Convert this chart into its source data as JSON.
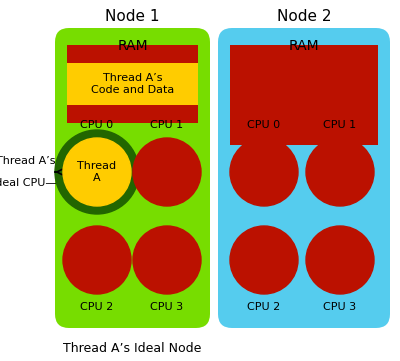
{
  "node1_label": "Node 1",
  "node2_label": "Node 2",
  "node1_color": "#77dd00",
  "node2_color": "#55ccee",
  "ram_color": "#bb1100",
  "cpu_color": "#bb1100",
  "cpu0_fill": "#ffcc00",
  "cpu0_ring": "#226600",
  "yellow_color": "#ffcc00",
  "ram_label": "RAM",
  "thread_label": "Thread A’s\nCode and Data",
  "cpu_labels": [
    "CPU 0",
    "CPU 1",
    "CPU 2",
    "CPU 3"
  ],
  "thread_a_label": "Thread\nA",
  "ideal_cpu_label": "Thread A’s\nIdeal CPU—",
  "ideal_node_label": "Thread A’s Ideal Node",
  "bg_color": "#ffffff",
  "fig_w": 4.0,
  "fig_h": 3.61,
  "dpi": 100
}
